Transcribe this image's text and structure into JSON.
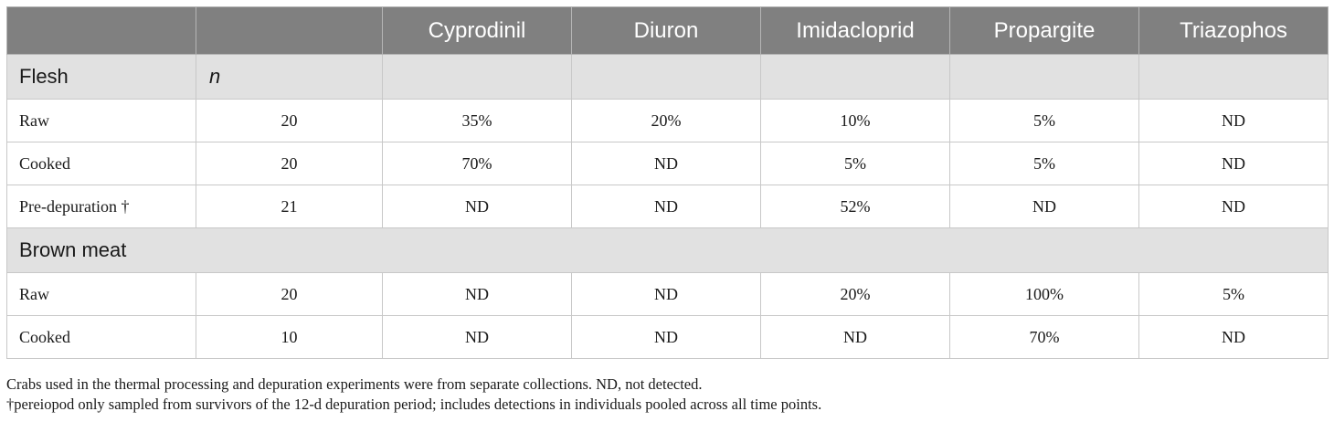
{
  "columns": [
    "",
    "",
    "Cyprodinil",
    "Diuron",
    "Imidacloprid",
    "Propargite",
    "Triazophos"
  ],
  "groups": [
    {
      "label": "Flesh",
      "n_header": "n",
      "rows": [
        {
          "label": "Raw",
          "n": "20",
          "values": [
            "35%",
            "20%",
            "10%",
            "5%",
            "ND"
          ]
        },
        {
          "label": "Cooked",
          "n": "20",
          "values": [
            "70%",
            "ND",
            "5%",
            "5%",
            "ND"
          ]
        },
        {
          "label": "Pre-depuration †",
          "n": "21",
          "values": [
            "ND",
            "ND",
            "52%",
            "ND",
            "ND"
          ]
        }
      ]
    },
    {
      "label": "Brown meat",
      "rows": [
        {
          "label": "Raw",
          "n": "20",
          "values": [
            "ND",
            "ND",
            "20%",
            "100%",
            "5%"
          ]
        },
        {
          "label": "Cooked",
          "n": "10",
          "values": [
            "ND",
            "ND",
            "ND",
            "70%",
            "ND"
          ]
        }
      ]
    }
  ],
  "footnotes": [
    "Crabs used in the thermal processing and depuration experiments were from separate collections. ND, not detected.",
    "†pereiopod only sampled from survivors of the 12-d depuration period; includes detections in individuals pooled across all time points."
  ]
}
